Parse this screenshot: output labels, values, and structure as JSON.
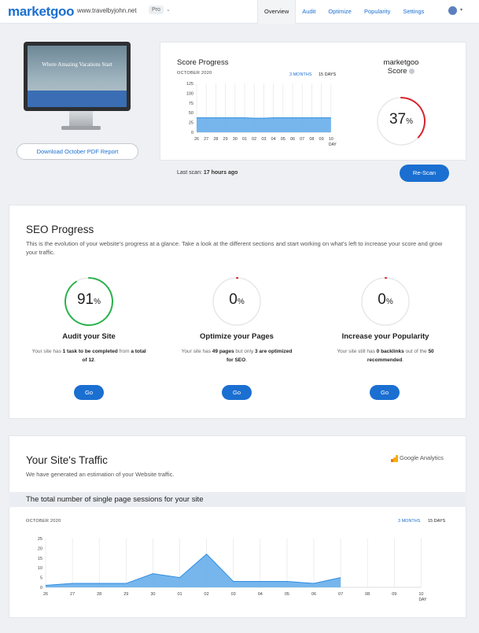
{
  "header": {
    "logo": "marketgoo",
    "site_url": "www.travelbyjohn.net",
    "plan_badge": "Pro",
    "nav": [
      "Overview",
      "Audit",
      "Optimize",
      "Popularity",
      "Settings"
    ],
    "active_nav": "Overview"
  },
  "preview": {
    "screen_text": "Where Amazing Vacations Start",
    "download_label": "Download October PDF Report"
  },
  "score_progress": {
    "title": "Score Progress",
    "period": "OCTOBER 2020",
    "range_options": [
      "3 MONTHS",
      "15 DAYS"
    ],
    "active_range": "15 DAYS",
    "score_label": "SCORE",
    "day_label": "DAY"
  },
  "marketgoo_score": {
    "title_line1": "marketgoo",
    "title_line2": "Score",
    "value": "37",
    "unit": "%",
    "fraction": 0.37,
    "color": "#d8232a"
  },
  "scan": {
    "last_scan_prefix": "Last scan:",
    "last_scan_value": "17 hours ago",
    "rescan_label": "Re-Scan"
  },
  "seo_progress": {
    "title": "SEO Progress",
    "description": "This is the evolution of your website's progress at a glance. Take a look at the different sections and start working on what's left to increase your score and grow your traffic.",
    "items": [
      {
        "value": "91",
        "unit": "%",
        "fraction": 0.91,
        "color": "#2bb24c",
        "title": "Audit your Site",
        "desc_parts": [
          "Your site has ",
          "1 task to be completed",
          " from ",
          "a total of 12",
          "."
        ],
        "go": "Go"
      },
      {
        "value": "0",
        "unit": "%",
        "fraction": 0.0,
        "color": "#d8232a",
        "title": "Optimize your Pages",
        "desc_parts": [
          "Your site has ",
          "49 pages",
          " but only ",
          "3 are optimized for SEO",
          "."
        ],
        "go": "Go"
      },
      {
        "value": "0",
        "unit": "%",
        "fraction": 0.0,
        "color": "#d8232a",
        "title": "Increase your Popularity",
        "desc_parts": [
          "Your site still has ",
          "0 backlinks",
          " out of the ",
          "50 recommended",
          "."
        ],
        "go": "Go"
      }
    ]
  },
  "traffic": {
    "title": "Your Site's Traffic",
    "description": "We have generated an estimation of your Website traffic.",
    "ga_label": "Google Analytics",
    "subtitle": "The total number of single page sessions for your site",
    "period": "OCTOBER 2020",
    "range_options": [
      "3 MONTHS",
      "15 DAYS"
    ],
    "active_range": "15 DAYS"
  },
  "chart_data": [
    {
      "type": "area",
      "title": "Score Progress",
      "ylabel": "SCORE",
      "xlabel": "DAY",
      "x": [
        "26",
        "27",
        "28",
        "29",
        "30",
        "01",
        "02",
        "03",
        "04",
        "05",
        "06",
        "07",
        "08",
        "09",
        "10"
      ],
      "ylim": [
        0,
        125
      ],
      "yticks": [
        0,
        25,
        50,
        75,
        100,
        125
      ],
      "series": [
        {
          "values": [
            37,
            37,
            37,
            37,
            37,
            37,
            36,
            36,
            37,
            37,
            37,
            37,
            37,
            37,
            37
          ]
        }
      ],
      "grid": true,
      "color": "#2e8de0"
    },
    {
      "type": "area",
      "title": "The total number of single page sessions for your site",
      "ylabel": "SESSIONS",
      "xlabel": "DAY",
      "x": [
        "26",
        "27",
        "28",
        "29",
        "30",
        "01",
        "02",
        "03",
        "04",
        "05",
        "06",
        "07",
        "08",
        "09",
        "10"
      ],
      "ylim": [
        0,
        25
      ],
      "yticks": [
        0,
        5,
        10,
        15,
        20,
        25
      ],
      "series": [
        {
          "values": [
            1,
            2,
            2,
            2,
            7,
            5,
            17,
            3,
            3,
            3,
            2,
            5,
            null,
            null,
            null
          ]
        }
      ],
      "grid": true,
      "color": "#2e8de0"
    }
  ]
}
